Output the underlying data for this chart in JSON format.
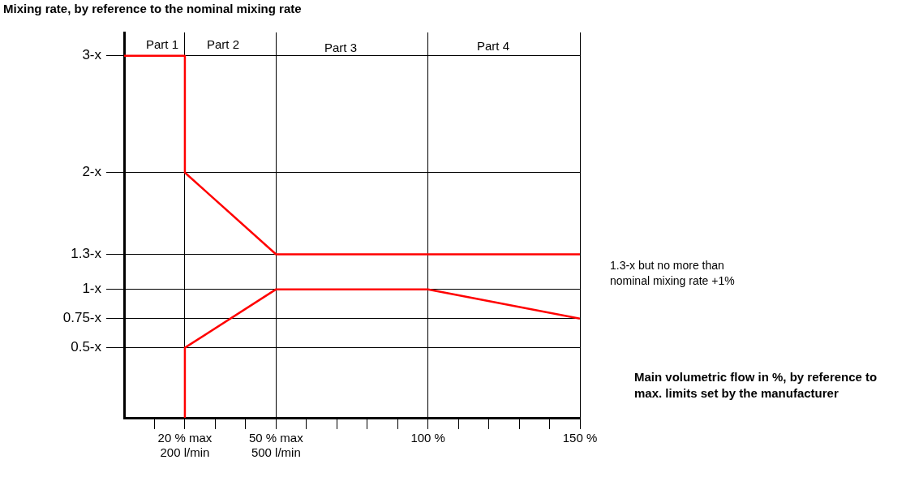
{
  "chart_data": {
    "type": "line",
    "xlabel": "Main volumetric flow in %, by reference to max. limits set by the manufacturer",
    "ylabel": "Mixing rate, by reference to the nominal mixing rate",
    "xlim": [
      0,
      150
    ],
    "xticks": [
      {
        "value": 10,
        "label": null
      },
      {
        "value": 20,
        "label": "20 % max\n200 l/min"
      },
      {
        "value": 30,
        "label": null
      },
      {
        "value": 40,
        "label": null
      },
      {
        "value": 50,
        "label": "50 % max\n500 l/min"
      },
      {
        "value": 60,
        "label": null
      },
      {
        "value": 70,
        "label": null
      },
      {
        "value": 80,
        "label": null
      },
      {
        "value": 90,
        "label": null
      },
      {
        "value": 100,
        "label": "100 %"
      },
      {
        "value": 110,
        "label": null
      },
      {
        "value": 120,
        "label": null
      },
      {
        "value": 130,
        "label": null
      },
      {
        "value": 140,
        "label": null
      },
      {
        "value": 150,
        "label": "150 %"
      }
    ],
    "ylim": [
      -0.1,
      3.2
    ],
    "yticks": [
      {
        "value": 0.5,
        "label": "0.5-x"
      },
      {
        "value": 0.75,
        "label": "0.75-x"
      },
      {
        "value": 1,
        "label": "1-x"
      },
      {
        "value": 1.3,
        "label": "1.3-x"
      },
      {
        "value": 2,
        "label": "2-x"
      },
      {
        "value": 3,
        "label": "3-x"
      }
    ],
    "series": [
      {
        "color": "#ff0000",
        "x": [
          0,
          20,
          20,
          50,
          150
        ],
        "values": [
          3,
          3,
          2,
          1.3,
          1.3
        ]
      },
      {
        "color": "#ff0000",
        "x": [
          20,
          20,
          50,
          100,
          150
        ],
        "values": [
          -0.1,
          0.5,
          1,
          1,
          0.75
        ]
      }
    ],
    "annotations": [
      "Part 1",
      "Part 2",
      "Part 3",
      "Part 4",
      "1.3-x but no more than\nnominal mixing rate +1%"
    ],
    "grid": true,
    "legend": false,
    "marker": "none",
    "line_style": "solid"
  }
}
